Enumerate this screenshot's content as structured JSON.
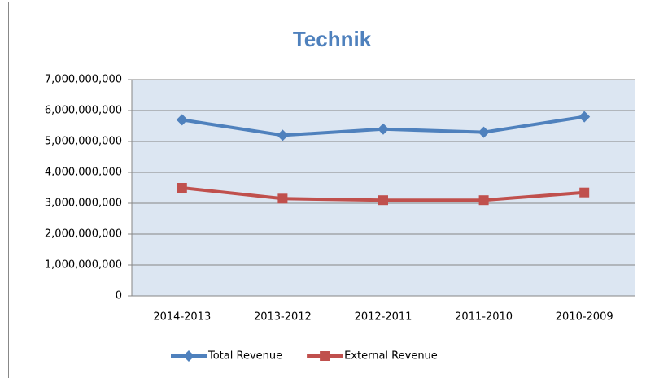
{
  "chart_data": {
    "type": "line",
    "title": "Technik",
    "categories": [
      "2014-2013",
      "2013-2012",
      "2012-2011",
      "2011-2010",
      "2010-2009"
    ],
    "series": [
      {
        "name": "Total Revenue",
        "color": "#4f81bd",
        "marker": "diamond",
        "values": [
          5700000000,
          5200000000,
          5400000000,
          5300000000,
          5800000000
        ]
      },
      {
        "name": "External Revenue",
        "color": "#c0504d",
        "marker": "square",
        "values": [
          3500000000,
          3150000000,
          3100000000,
          3100000000,
          3350000000
        ]
      }
    ],
    "ylim": [
      0,
      7000000000
    ],
    "yticks": [
      0,
      {
        "value": 1000000000,
        "label": "1,000,000,000"
      },
      {
        "value": 2000000000,
        "label": "2,000,000,000"
      },
      {
        "value": 3000000000,
        "label": "3,000,000,000"
      },
      {
        "value": 4000000000,
        "label": "4,000,000,000"
      },
      {
        "value": 5000000000,
        "label": "5,000,000,000"
      },
      {
        "value": 6000000000,
        "label": "6,000,000,000"
      },
      {
        "value": 7000000000,
        "label": "7,000,000,000"
      }
    ],
    "grid": true,
    "legend": "bottom",
    "plot_background": "#dce6f2"
  }
}
